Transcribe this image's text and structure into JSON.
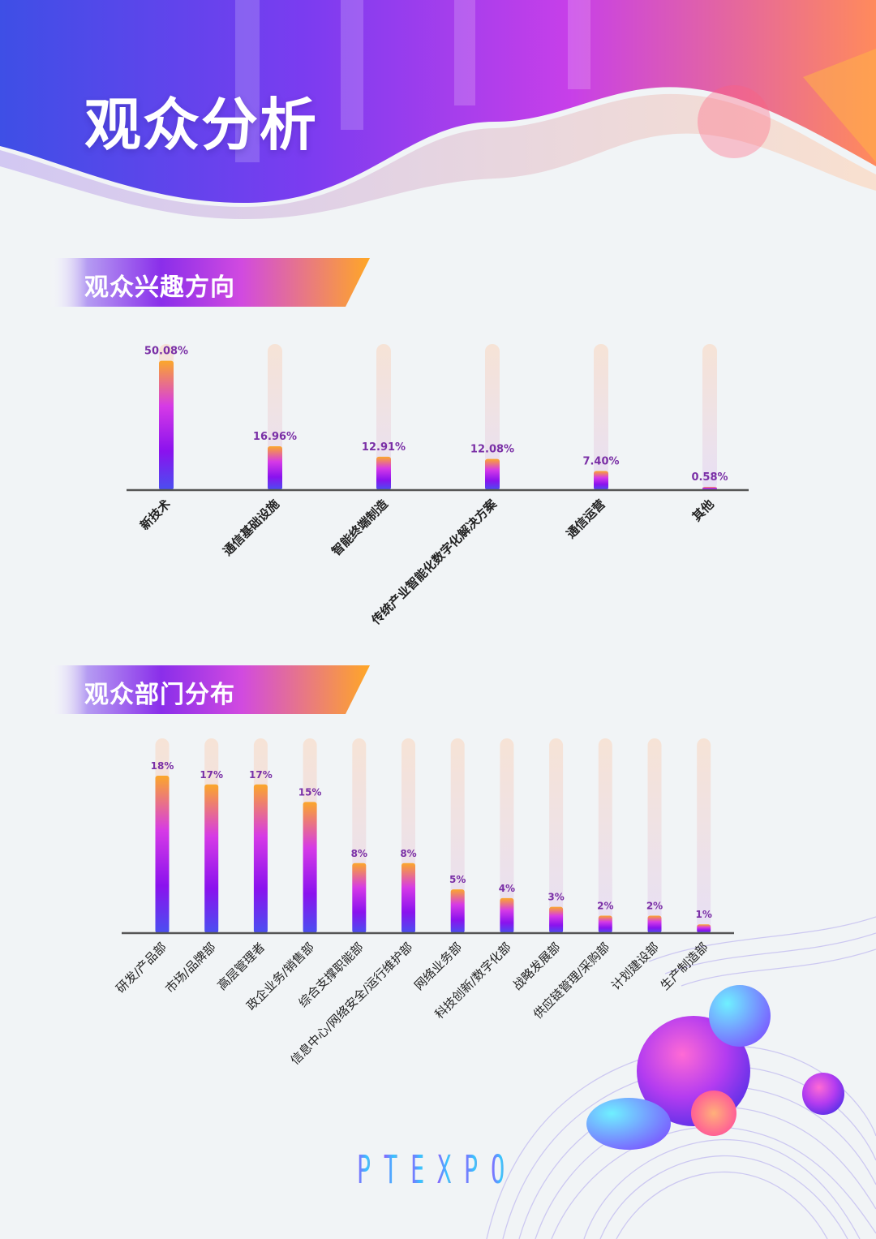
{
  "page": {
    "title": "观众分析"
  },
  "sections": [
    {
      "title": "观众兴趣方向"
    },
    {
      "title": "观众部门分布"
    }
  ],
  "logo": {
    "letters": [
      "P",
      "T",
      "E",
      "X",
      "P",
      "O"
    ]
  },
  "colors": {
    "orange": "#fba72b",
    "magenta": "#d63ae6",
    "purple": "#8a12ee",
    "blue": "#4a4ff0",
    "label": "#7a2fa6"
  },
  "chart_data": [
    {
      "type": "bar",
      "categories": [
        "新技术",
        "通信基础设施",
        "智能终端制造",
        "传统产业智能化数字化解决方案",
        "通信运营",
        "其他"
      ],
      "values": [
        50.08,
        16.96,
        12.91,
        12.08,
        7.4,
        0.58
      ],
      "data_labels": [
        "50.08%",
        "16.96%",
        "12.91%",
        "12.08%",
        "7.40%",
        "0.58%"
      ],
      "ylim": [
        0,
        55
      ]
    },
    {
      "type": "bar",
      "categories": [
        "研发/产品部",
        "市场/品牌部",
        "高层管理者",
        "政企业务/销售部",
        "综合支撑职能部",
        "信息中心/网络安全/运行维护部",
        "网络业务部",
        "科技创新/数字化部",
        "战略发展部",
        "供应链管理/采购部",
        "计划建设部",
        "生产制造部"
      ],
      "values": [
        18,
        17,
        17,
        15,
        8,
        8,
        5,
        4,
        3,
        2,
        2,
        1
      ],
      "data_labels": [
        "18%",
        "17%",
        "17%",
        "15%",
        "8%",
        "8%",
        "5%",
        "4%",
        "3%",
        "2%",
        "2%",
        "1%"
      ],
      "ylim": [
        0,
        18
      ]
    }
  ]
}
